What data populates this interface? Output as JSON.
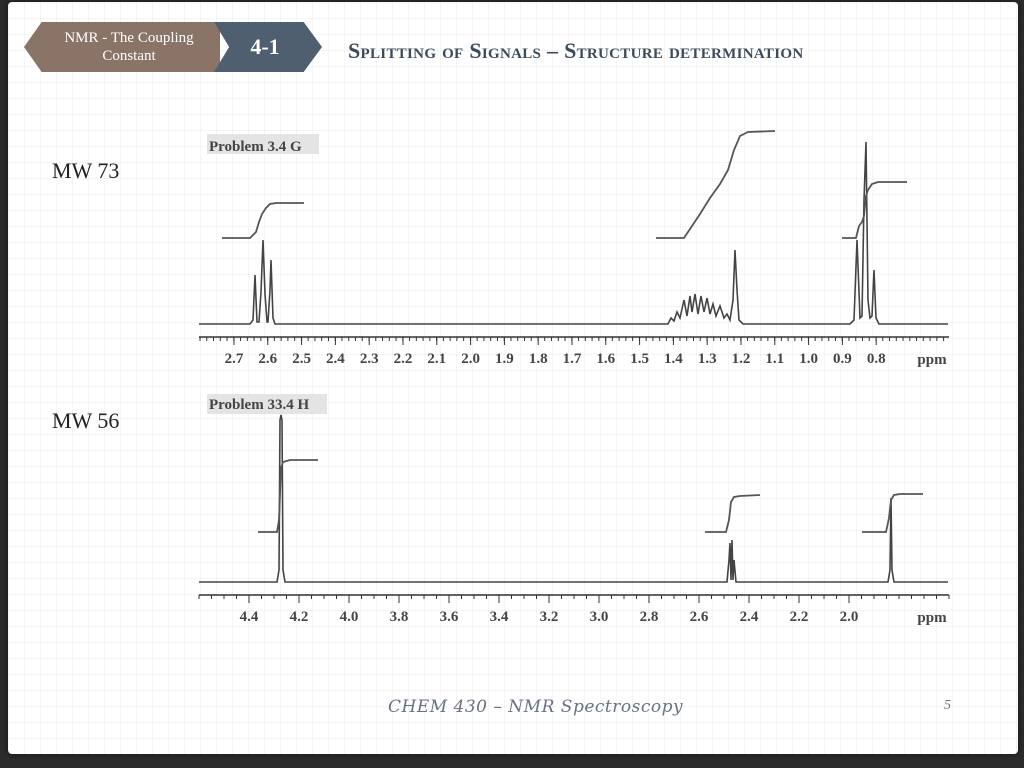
{
  "header": {
    "topic": "NMR - The Coupling Constant",
    "section": "4-1",
    "title": "Splitting of Signals – Structure determination"
  },
  "spectra": [
    {
      "label": "Problem 3.4 G",
      "mw": "MW 73",
      "ticks": [
        "2.7",
        "2.6",
        "2.5",
        "2.4",
        "2.3",
        "2.2",
        "2.1",
        "2.0",
        "1.9",
        "1.8",
        "1.7",
        "1.6",
        "1.5",
        "1.4",
        "1.3",
        "1.2",
        "1.1",
        "1.0",
        "0.9",
        "0.8"
      ],
      "unit": "ppm"
    },
    {
      "label": "Problem 33.4 H",
      "mw": "MW 56",
      "ticks": [
        "4.4",
        "4.2",
        "4.0",
        "3.8",
        "3.6",
        "3.4",
        "3.2",
        "3.0",
        "2.8",
        "2.6",
        "2.4",
        "2.2",
        "2.0"
      ],
      "unit": "ppm"
    }
  ],
  "footer": {
    "course": "CHEM 430 – NMR Spectroscopy",
    "page": "5"
  }
}
